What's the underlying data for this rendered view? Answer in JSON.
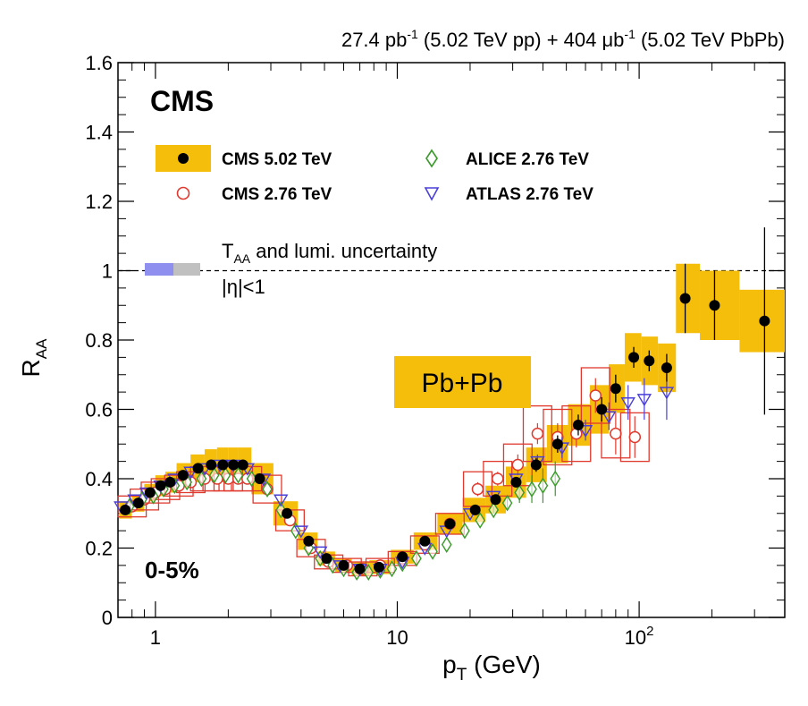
{
  "chart_data": {
    "type": "scatter",
    "title": "",
    "luminosity_parts": {
      "pp_value": "27.4 pb",
      "pp_exp": "-1",
      "pp_desc": " (5.02 TeV pp) + 404 μb",
      "pbpb_exp": "-1",
      "pbpb_desc": " (5.02 TeV PbPb)"
    },
    "experiment_label": "CMS",
    "centrality_label": "0-5%",
    "system_badge": "Pb+Pb",
    "eta_cut_label": "|η|<1",
    "taa_note": {
      "main": "T",
      "sub": "AA",
      "rest": " and lumi. uncertainty"
    },
    "xlabel": {
      "main": "p",
      "sub": "T",
      "rest": " (GeV)"
    },
    "ylabel": {
      "main": "R",
      "sub": "AA"
    },
    "xscale": "log",
    "xlim": [
      0.7,
      400
    ],
    "ylim": [
      0,
      1.6
    ],
    "y_ticks": [
      0,
      0.2,
      0.4,
      0.6,
      0.8,
      1,
      1.2,
      1.4,
      1.6
    ],
    "y_tick_labels": [
      "0",
      "0.2",
      "0.4",
      "0.6",
      "0.8",
      "1",
      "1.2",
      "1.4",
      "1.6"
    ],
    "x_major_ticks": [
      1,
      10,
      100
    ],
    "x_tick_labels": [
      "1",
      "10",
      "10"
    ],
    "x_tick_exp": [
      "",
      "",
      "2"
    ],
    "reference_line": 1,
    "colors": {
      "cms502": "#000000",
      "cms502_syst": "#f5be0b",
      "cms276": "#e03a2f",
      "alice": "#3a9a2a",
      "atlas": "#4a3fd8",
      "lumi_box1": "#8f8ff0",
      "lumi_box2": "#c0c0c0",
      "badge": "#f5be0b"
    },
    "legend": [
      {
        "label": "CMS 5.02 TeV",
        "marker": "filled-circle"
      },
      {
        "label": "ALICE 2.76 TeV",
        "marker": "open-diamond"
      },
      {
        "label": "CMS 2.76 TeV",
        "marker": "open-circle"
      },
      {
        "label": "ATLAS 2.76 TeV",
        "marker": "open-triangle-down"
      }
    ],
    "series": [
      {
        "name": "CMS 5.02 TeV",
        "x": [
          0.75,
          0.85,
          0.95,
          1.05,
          1.15,
          1.3,
          1.5,
          1.7,
          1.9,
          2.1,
          2.3,
          2.7,
          3.5,
          4.3,
          5.1,
          6.0,
          7.0,
          8.4,
          10.5,
          13.0,
          16.5,
          21.0,
          25.5,
          31.0,
          37.5,
          46.0,
          56.0,
          70.0,
          80.0,
          95.0,
          110.0,
          130.0,
          155.0,
          205.0,
          330.0
        ],
        "y": [
          0.31,
          0.33,
          0.36,
          0.38,
          0.39,
          0.41,
          0.43,
          0.44,
          0.44,
          0.44,
          0.44,
          0.4,
          0.3,
          0.22,
          0.17,
          0.15,
          0.14,
          0.145,
          0.175,
          0.22,
          0.27,
          0.31,
          0.34,
          0.39,
          0.44,
          0.5,
          0.555,
          0.6,
          0.66,
          0.75,
          0.74,
          0.72,
          0.92,
          0.9,
          0.855
        ],
        "stat_err": [
          0.005,
          0.005,
          0.005,
          0.005,
          0.005,
          0.005,
          0.005,
          0.005,
          0.005,
          0.005,
          0.005,
          0.005,
          0.005,
          0.005,
          0.005,
          0.005,
          0.005,
          0.005,
          0.005,
          0.005,
          0.01,
          0.01,
          0.01,
          0.015,
          0.02,
          0.025,
          0.03,
          0.035,
          0.04,
          0.03,
          0.03,
          0.04,
          0.1,
          0.1,
          0.27
        ],
        "syst_err": [
          0.025,
          0.025,
          0.025,
          0.03,
          0.03,
          0.035,
          0.04,
          0.045,
          0.05,
          0.05,
          0.05,
          0.045,
          0.035,
          0.025,
          0.02,
          0.02,
          0.02,
          0.02,
          0.02,
          0.025,
          0.03,
          0.035,
          0.04,
          0.045,
          0.05,
          0.055,
          0.06,
          0.07,
          0.07,
          0.07,
          0.07,
          0.07,
          0.1,
          0.1,
          0.09
        ]
      },
      {
        "name": "CMS 2.76 TeV",
        "x": [
          0.8,
          0.9,
          1.0,
          1.1,
          1.25,
          1.4,
          1.6,
          1.8,
          2.0,
          2.2,
          2.4,
          2.9,
          3.6,
          4.4,
          5.2,
          6.2,
          7.2,
          8.5,
          10.5,
          13.0,
          16.5,
          21.5,
          26.0,
          31.5,
          38.0,
          46.0,
          55.0,
          66.0,
          80.0,
          96.0
        ],
        "y": [
          0.32,
          0.34,
          0.36,
          0.37,
          0.38,
          0.39,
          0.4,
          0.4,
          0.4,
          0.4,
          0.4,
          0.37,
          0.28,
          0.2,
          0.16,
          0.15,
          0.14,
          0.15,
          0.17,
          0.21,
          0.27,
          0.37,
          0.4,
          0.44,
          0.53,
          0.52,
          0.53,
          0.64,
          0.53,
          0.52
        ],
        "box_half": [
          0.03,
          0.03,
          0.03,
          0.03,
          0.03,
          0.03,
          0.035,
          0.035,
          0.035,
          0.035,
          0.035,
          0.04,
          0.03,
          0.025,
          0.02,
          0.02,
          0.02,
          0.02,
          0.02,
          0.025,
          0.03,
          0.05,
          0.05,
          0.06,
          0.08,
          0.08,
          0.08,
          0.08,
          0.07,
          0.07
        ],
        "stat_err": [
          0,
          0,
          0,
          0,
          0,
          0,
          0,
          0,
          0,
          0,
          0,
          0,
          0,
          0,
          0,
          0,
          0,
          0,
          0,
          0,
          0,
          0.02,
          0.02,
          0.03,
          0.03,
          0.04,
          0.04,
          0.05,
          0.06,
          0.06
        ]
      },
      {
        "name": "ALICE 2.76 TeV",
        "x": [
          0.78,
          0.88,
          0.98,
          1.08,
          1.2,
          1.35,
          1.55,
          1.75,
          1.95,
          2.2,
          2.5,
          2.9,
          3.3,
          3.8,
          4.3,
          4.8,
          5.4,
          6.0,
          6.8,
          7.6,
          8.5,
          9.5,
          10.5,
          12.0,
          14.0,
          16.0,
          19.0,
          22.0,
          25.0,
          28.5,
          32.0,
          36.0,
          40.0,
          45.0
        ],
        "y": [
          0.32,
          0.34,
          0.35,
          0.37,
          0.38,
          0.39,
          0.4,
          0.41,
          0.41,
          0.41,
          0.4,
          0.37,
          0.31,
          0.25,
          0.2,
          0.17,
          0.15,
          0.14,
          0.13,
          0.13,
          0.135,
          0.14,
          0.155,
          0.17,
          0.19,
          0.21,
          0.25,
          0.28,
          0.31,
          0.33,
          0.36,
          0.37,
          0.38,
          0.4
        ],
        "stat_err": [
          0,
          0,
          0,
          0,
          0,
          0,
          0,
          0,
          0,
          0,
          0,
          0,
          0,
          0,
          0,
          0,
          0,
          0,
          0,
          0,
          0,
          0,
          0,
          0,
          0,
          0,
          0,
          0,
          0.01,
          0.02,
          0.03,
          0.04,
          0.05,
          0.05
        ]
      },
      {
        "name": "ATLAS 2.76 TeV",
        "x": [
          0.72,
          0.82,
          0.92,
          1.05,
          1.2,
          1.4,
          1.6,
          1.85,
          2.1,
          2.4,
          2.8,
          3.3,
          4.0,
          4.8,
          5.8,
          7.0,
          8.5,
          10.5,
          13.0,
          16.0,
          20.0,
          25.0,
          31.0,
          38.0,
          48.0,
          60.0,
          75.0,
          90.0,
          105.0,
          130.0
        ],
        "y": [
          0.32,
          0.34,
          0.36,
          0.38,
          0.4,
          0.42,
          0.43,
          0.44,
          0.44,
          0.43,
          0.4,
          0.34,
          0.25,
          0.19,
          0.15,
          0.14,
          0.14,
          0.16,
          0.2,
          0.25,
          0.3,
          0.35,
          0.4,
          0.45,
          0.49,
          0.54,
          0.58,
          0.62,
          0.63,
          0.65
        ],
        "stat_err": [
          0,
          0,
          0,
          0,
          0,
          0,
          0,
          0,
          0,
          0,
          0,
          0,
          0,
          0,
          0,
          0,
          0,
          0,
          0,
          0,
          0,
          0,
          0,
          0.02,
          0.03,
          0.03,
          0.04,
          0.05,
          0.06,
          0.08
        ]
      }
    ]
  }
}
